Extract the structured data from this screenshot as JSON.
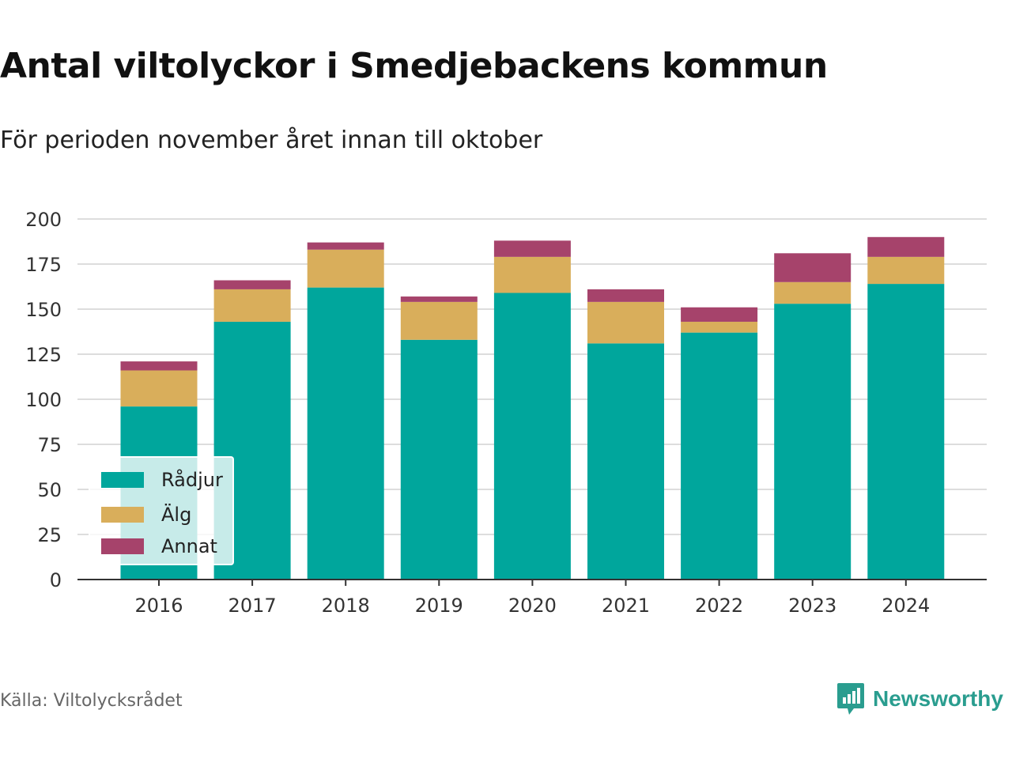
{
  "title": "Antal viltolyckor i Smedjebackens kommun",
  "subtitle": "För perioden november året innan till oktober",
  "source": "Källa: Viltolycksrådet",
  "brand": {
    "name": "Newsworthy",
    "icon": "newsworthy-logo-icon",
    "color": "#2a9d8f"
  },
  "chart_data": {
    "type": "bar",
    "stacked": true,
    "categories": [
      "2016",
      "2017",
      "2018",
      "2019",
      "2020",
      "2021",
      "2022",
      "2023",
      "2024"
    ],
    "series": [
      {
        "name": "Rådjur",
        "color": "#00a69c",
        "values": [
          96,
          143,
          162,
          133,
          159,
          131,
          137,
          153,
          164
        ]
      },
      {
        "name": "Älg",
        "color": "#d9ae5b",
        "values": [
          20,
          18,
          21,
          21,
          20,
          23,
          6,
          12,
          15
        ]
      },
      {
        "name": "Annat",
        "color": "#a6436b",
        "values": [
          5,
          5,
          4,
          3,
          9,
          7,
          8,
          16,
          11
        ]
      }
    ],
    "ylim": [
      0,
      200
    ],
    "yticks": [
      "0",
      "25",
      "50",
      "75",
      "100",
      "125",
      "150",
      "175",
      "200"
    ],
    "grid": true,
    "legend_position": "bottom-left"
  }
}
